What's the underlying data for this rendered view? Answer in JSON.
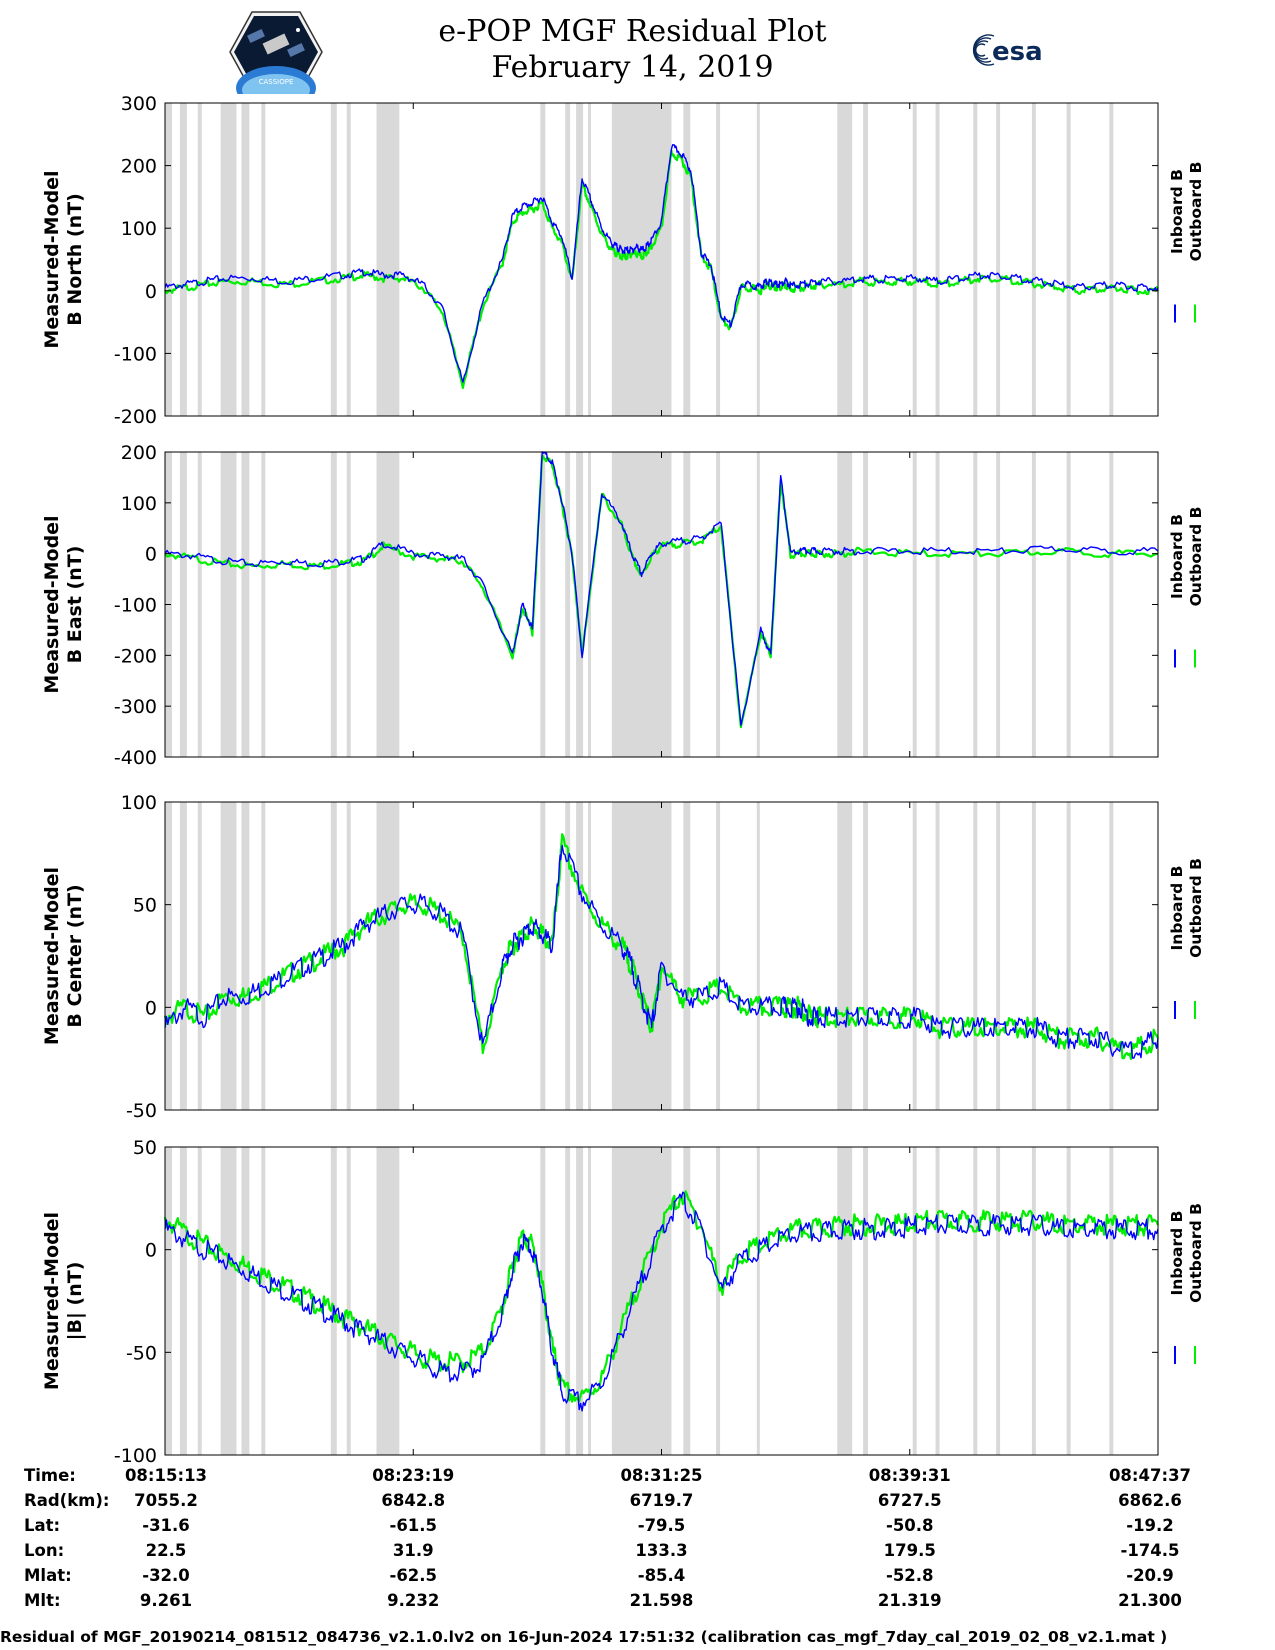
{
  "title": {
    "line1": "e-POP MGF Residual Plot",
    "line2": "February 14, 2019"
  },
  "logos": {
    "left": "cassiope-mission-patch",
    "left_text": "CASSIOPE",
    "right": "esa-logo",
    "right_text": "esa"
  },
  "colors": {
    "inboard": "#0000ff",
    "outboard": "#00ee00",
    "gap_shading": "#d9d9d9"
  },
  "legend": {
    "inboard": "Inboard B",
    "outboard": "Outboard B"
  },
  "chart_data": [
    {
      "type": "line",
      "ylabel": [
        "Measured-Model",
        "B North (nT)"
      ],
      "ylim": [
        -200,
        300
      ],
      "yticks": [
        300,
        200,
        100,
        0,
        -100,
        -200
      ],
      "x": [
        0,
        0.02,
        0.04,
        0.06,
        0.09,
        0.12,
        0.15,
        0.18,
        0.2,
        0.22,
        0.24,
        0.26,
        0.28,
        0.3,
        0.32,
        0.34,
        0.35,
        0.36,
        0.37,
        0.38,
        0.39,
        0.4,
        0.41,
        0.42,
        0.43,
        0.44,
        0.45,
        0.455,
        0.46,
        0.465,
        0.47,
        0.475,
        0.48,
        0.485,
        0.49,
        0.5,
        0.51,
        0.52,
        0.53,
        0.54,
        0.55,
        0.56,
        0.57,
        0.58,
        0.59,
        0.6,
        0.605,
        0.61,
        0.615,
        0.62,
        0.625,
        0.63,
        0.64,
        0.65,
        0.66,
        0.68,
        0.7,
        0.72,
        0.74,
        0.76,
        0.78,
        0.8,
        0.82,
        0.84,
        0.86,
        0.88,
        0.9,
        0.92,
        0.94,
        0.96,
        0.98,
        1.0
      ],
      "series": [
        {
          "name": "Inboard B",
          "values": [
            5,
            10,
            15,
            20,
            20,
            15,
            20,
            25,
            30,
            25,
            25,
            10,
            -30,
            -150,
            -20,
            50,
            120,
            135,
            140,
            150,
            110,
            85,
            20,
            180,
            140,
            100,
            75,
            70,
            65,
            65,
            65,
            70,
            65,
            70,
            80,
            110,
            230,
            220,
            190,
            60,
            40,
            -40,
            -55,
            10,
            10,
            5,
            15,
            12,
            10,
            10,
            15,
            8,
            10,
            12,
            15,
            15,
            20,
            18,
            20,
            20,
            15,
            20,
            25,
            25,
            20,
            15,
            10,
            5,
            8,
            10,
            5,
            5
          ]
        },
        {
          "name": "Outboard B",
          "values": [
            0,
            5,
            10,
            15,
            15,
            10,
            15,
            20,
            25,
            20,
            20,
            5,
            -35,
            -150,
            -25,
            45,
            110,
            125,
            130,
            140,
            100,
            75,
            15,
            170,
            130,
            90,
            65,
            60,
            55,
            55,
            60,
            60,
            55,
            60,
            70,
            100,
            220,
            210,
            180,
            55,
            35,
            -45,
            -60,
            5,
            5,
            0,
            10,
            7,
            5,
            5,
            10,
            3,
            5,
            7,
            10,
            10,
            15,
            13,
            15,
            15,
            10,
            15,
            20,
            20,
            15,
            10,
            5,
            0,
            3,
            5,
            0,
            0
          ]
        }
      ]
    },
    {
      "type": "line",
      "ylabel": [
        "Measured-Model",
        "B East (nT)"
      ],
      "ylim": [
        -400,
        200
      ],
      "yticks": [
        200,
        100,
        0,
        -100,
        -200,
        -300,
        -400
      ],
      "x": [
        0,
        0.03,
        0.06,
        0.09,
        0.12,
        0.15,
        0.18,
        0.2,
        0.22,
        0.25,
        0.28,
        0.3,
        0.32,
        0.35,
        0.36,
        0.37,
        0.38,
        0.39,
        0.4,
        0.41,
        0.42,
        0.44,
        0.46,
        0.47,
        0.48,
        0.49,
        0.5,
        0.52,
        0.54,
        0.56,
        0.58,
        0.6,
        0.61,
        0.62,
        0.63,
        0.64,
        0.65,
        0.66,
        0.68,
        0.7,
        0.75,
        0.8,
        0.85,
        0.9,
        0.95,
        1.0
      ],
      "series": [
        {
          "name": "Inboard B",
          "values": [
            0,
            -5,
            -15,
            -20,
            -15,
            -20,
            -15,
            -10,
            20,
            0,
            -5,
            -10,
            -60,
            -200,
            -100,
            -150,
            200,
            180,
            100,
            0,
            -200,
            120,
            60,
            0,
            -40,
            0,
            20,
            25,
            30,
            60,
            -340,
            -150,
            -200,
            150,
            0,
            5,
            5,
            5,
            5,
            5,
            5,
            5,
            5,
            10,
            5,
            5
          ]
        },
        {
          "name": "Outboard B",
          "values": [
            0,
            -10,
            -20,
            -25,
            -20,
            -25,
            -20,
            -15,
            15,
            -5,
            -10,
            -15,
            -65,
            -200,
            -105,
            -155,
            195,
            175,
            95,
            -5,
            -200,
            115,
            55,
            -5,
            -45,
            -5,
            15,
            20,
            25,
            55,
            -340,
            -155,
            -200,
            145,
            -5,
            0,
            0,
            0,
            0,
            5,
            0,
            0,
            0,
            5,
            0,
            0
          ]
        }
      ]
    },
    {
      "type": "line",
      "ylabel": [
        "Measured-Model",
        "B Center (nT)"
      ],
      "ylim": [
        -50,
        100
      ],
      "yticks": [
        100,
        50,
        0,
        -50
      ],
      "x": [
        0,
        0.02,
        0.04,
        0.06,
        0.08,
        0.1,
        0.12,
        0.14,
        0.16,
        0.18,
        0.2,
        0.22,
        0.24,
        0.26,
        0.28,
        0.3,
        0.32,
        0.34,
        0.35,
        0.36,
        0.37,
        0.38,
        0.39,
        0.4,
        0.42,
        0.44,
        0.46,
        0.47,
        0.48,
        0.49,
        0.5,
        0.52,
        0.54,
        0.56,
        0.58,
        0.6,
        0.62,
        0.63,
        0.64,
        0.65,
        0.66,
        0.68,
        0.7,
        0.72,
        0.74,
        0.76,
        0.78,
        0.8,
        0.82,
        0.84,
        0.86,
        0.88,
        0.9,
        0.92,
        0.94,
        0.96,
        0.98,
        1.0
      ],
      "series": [
        {
          "name": "Inboard B",
          "values": [
            -10,
            0,
            -5,
            5,
            5,
            10,
            15,
            20,
            25,
            30,
            40,
            45,
            50,
            50,
            45,
            35,
            -20,
            20,
            30,
            35,
            40,
            35,
            30,
            80,
            55,
            40,
            30,
            20,
            5,
            -10,
            20,
            5,
            5,
            10,
            0,
            0,
            0,
            0,
            0,
            -5,
            -5,
            -5,
            -5,
            -5,
            -5,
            -5,
            -10,
            -10,
            -10,
            -10,
            -10,
            -10,
            -15,
            -15,
            -15,
            -20,
            -20,
            -15
          ]
        },
        {
          "name": "Outboard B",
          "values": [
            -5,
            0,
            -5,
            5,
            5,
            10,
            15,
            20,
            25,
            30,
            40,
            45,
            50,
            50,
            45,
            35,
            -20,
            20,
            30,
            35,
            40,
            35,
            30,
            80,
            55,
            40,
            30,
            20,
            5,
            -10,
            20,
            5,
            5,
            10,
            0,
            0,
            0,
            0,
            0,
            -5,
            -5,
            -5,
            -5,
            -5,
            -5,
            -5,
            -10,
            -10,
            -10,
            -10,
            -10,
            -10,
            -15,
            -15,
            -15,
            -20,
            -20,
            -15
          ]
        }
      ]
    },
    {
      "type": "line",
      "ylabel": [
        "Measured-Model",
        "|B| (nT)"
      ],
      "ylim": [
        -100,
        50
      ],
      "yticks": [
        50,
        0,
        -50,
        -100
      ],
      "x": [
        0,
        0.02,
        0.04,
        0.06,
        0.08,
        0.1,
        0.12,
        0.14,
        0.16,
        0.18,
        0.2,
        0.22,
        0.24,
        0.26,
        0.28,
        0.3,
        0.32,
        0.34,
        0.35,
        0.36,
        0.37,
        0.38,
        0.39,
        0.4,
        0.42,
        0.44,
        0.46,
        0.48,
        0.5,
        0.52,
        0.54,
        0.56,
        0.58,
        0.6,
        0.62,
        0.64,
        0.66,
        0.68,
        0.7,
        0.72,
        0.74,
        0.76,
        0.78,
        0.8,
        0.82,
        0.84,
        0.86,
        0.88,
        0.9,
        0.92,
        0.94,
        0.96,
        0.98,
        1.0
      ],
      "series": [
        {
          "name": "Inboard B",
          "values": [
            10,
            5,
            0,
            -5,
            -10,
            -15,
            -20,
            -25,
            -30,
            -35,
            -40,
            -45,
            -50,
            -55,
            -60,
            -60,
            -55,
            -30,
            -10,
            5,
            0,
            -20,
            -50,
            -70,
            -75,
            -65,
            -40,
            -15,
            10,
            25,
            10,
            -20,
            -5,
            0,
            5,
            8,
            8,
            10,
            10,
            10,
            10,
            12,
            12,
            12,
            12,
            12,
            12,
            12,
            10,
            10,
            10,
            10,
            10,
            10
          ]
        },
        {
          "name": "Outboard B",
          "values": [
            15,
            8,
            2,
            -3,
            -8,
            -13,
            -18,
            -23,
            -28,
            -33,
            -38,
            -43,
            -48,
            -53,
            -55,
            -55,
            -50,
            -28,
            -8,
            7,
            2,
            -18,
            -48,
            -68,
            -73,
            -63,
            -38,
            -13,
            12,
            27,
            12,
            -18,
            -3,
            2,
            7,
            10,
            10,
            12,
            12,
            12,
            12,
            14,
            14,
            14,
            14,
            14,
            14,
            14,
            12,
            12,
            12,
            12,
            12,
            12
          ]
        }
      ]
    }
  ],
  "info_table": {
    "row_labels": [
      "Time:",
      "Rad(km):",
      "Lat:",
      "Lon:",
      "Mlat:",
      "Mlt:"
    ],
    "columns": [
      [
        "08:15:13",
        "7055.2",
        "-31.6",
        "22.5",
        "-32.0",
        "9.261"
      ],
      [
        "08:23:19",
        "6842.8",
        "-61.5",
        "31.9",
        "-62.5",
        "9.232"
      ],
      [
        "08:31:25",
        "6719.7",
        "-79.5",
        "133.3",
        "-85.4",
        "21.598"
      ],
      [
        "08:39:31",
        "6727.5",
        "-50.8",
        "179.5",
        "-52.8",
        "21.319"
      ],
      [
        "08:47:37",
        "6862.6",
        "-19.2",
        "-174.5",
        "-20.9",
        "21.300"
      ]
    ]
  },
  "footer": "Residual of MGF_20190214_081512_084736_v2.1.0.lv2 on 16-Jun-2024 17:51:32 (calibration cas_mgf_7day_cal_2019_02_08_v2.1.mat )"
}
